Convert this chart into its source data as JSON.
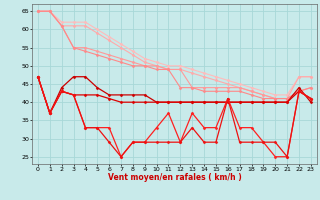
{
  "bg_color": "#c8eaea",
  "grid_color": "#a8d8d8",
  "xlabel": "Vent moyen/en rafales ( km/h )",
  "xlim": [
    -0.5,
    23.5
  ],
  "ylim": [
    23,
    67
  ],
  "yticks": [
    25,
    30,
    35,
    40,
    45,
    50,
    55,
    60,
    65
  ],
  "xticks": [
    0,
    1,
    2,
    3,
    4,
    5,
    6,
    7,
    8,
    9,
    10,
    11,
    12,
    13,
    14,
    15,
    16,
    17,
    18,
    19,
    20,
    21,
    22,
    23
  ],
  "series": [
    {
      "color": "#ffbbbb",
      "marker": "D",
      "markersize": 1.5,
      "linewidth": 0.8,
      "y": [
        65,
        65,
        62,
        62,
        62,
        60,
        58,
        56,
        54,
        52,
        51,
        50,
        50,
        49,
        48,
        47,
        46,
        45,
        44,
        43,
        42,
        42,
        47,
        47
      ]
    },
    {
      "color": "#ffaaaa",
      "marker": "D",
      "markersize": 1.5,
      "linewidth": 0.8,
      "y": [
        65,
        65,
        61,
        61,
        61,
        59,
        57,
        55,
        53,
        51,
        50,
        49,
        49,
        48,
        47,
        46,
        45,
        44,
        43,
        42,
        41,
        41,
        47,
        47
      ]
    },
    {
      "color": "#ff9999",
      "marker": "D",
      "markersize": 1.5,
      "linewidth": 0.8,
      "y": [
        65,
        65,
        61,
        55,
        55,
        54,
        53,
        52,
        51,
        50,
        50,
        49,
        49,
        44,
        44,
        44,
        44,
        44,
        43,
        42,
        41,
        41,
        43,
        44
      ]
    },
    {
      "color": "#ff8888",
      "marker": "D",
      "markersize": 1.5,
      "linewidth": 0.8,
      "y": [
        65,
        65,
        61,
        55,
        54,
        53,
        52,
        51,
        50,
        50,
        49,
        49,
        44,
        44,
        43,
        43,
        43,
        43,
        42,
        41,
        41,
        41,
        43,
        44
      ]
    },
    {
      "color": "#cc0000",
      "marker": "D",
      "markersize": 1.5,
      "linewidth": 0.9,
      "y": [
        47,
        37,
        44,
        47,
        47,
        44,
        42,
        42,
        42,
        42,
        40,
        40,
        40,
        40,
        40,
        40,
        40,
        40,
        40,
        40,
        40,
        40,
        44,
        40
      ]
    },
    {
      "color": "#dd0000",
      "marker": "D",
      "markersize": 1.5,
      "linewidth": 0.9,
      "y": [
        47,
        37,
        43,
        42,
        42,
        42,
        41,
        40,
        40,
        40,
        40,
        40,
        40,
        40,
        40,
        40,
        40,
        40,
        40,
        40,
        40,
        40,
        43,
        41
      ]
    },
    {
      "color": "#ff2020",
      "marker": "D",
      "markersize": 1.5,
      "linewidth": 0.9,
      "y": [
        47,
        37,
        43,
        42,
        33,
        33,
        33,
        25,
        29,
        29,
        33,
        37,
        29,
        37,
        33,
        33,
        41,
        33,
        33,
        29,
        25,
        25,
        43,
        41
      ]
    },
    {
      "color": "#ee1111",
      "marker": "D",
      "markersize": 1.5,
      "linewidth": 0.9,
      "y": [
        47,
        37,
        43,
        42,
        33,
        33,
        29,
        25,
        29,
        29,
        29,
        29,
        29,
        33,
        29,
        29,
        41,
        29,
        29,
        29,
        29,
        25,
        43,
        41
      ]
    }
  ]
}
